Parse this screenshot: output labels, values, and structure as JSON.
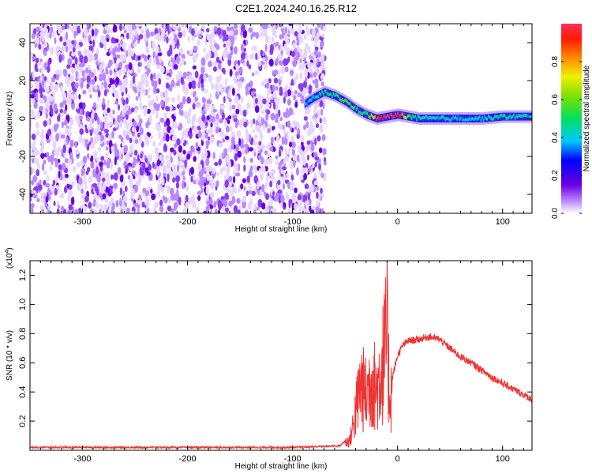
{
  "title": "C2E1.2024.240.16.25.R12",
  "colors": {
    "snr_line": "#ee3333",
    "frame": "#000000"
  },
  "chart_data": [
    {
      "type": "heatmap",
      "xlabel": "Height of straight line (km)",
      "ylabel": "Frequency (Hz)",
      "xlim": [
        -350,
        128
      ],
      "ylim": [
        -50,
        50
      ],
      "x_ticks": [
        -300,
        -200,
        -100,
        0,
        100
      ],
      "y_ticks": [
        -40,
        -20,
        0,
        20,
        40
      ],
      "colorbar": {
        "label": "Normalized spectral amplitude",
        "range": [
          0,
          1
        ],
        "ticks": [
          "0.0",
          "0.2",
          "0.4",
          "0.6",
          "0.8"
        ],
        "tick_values": [
          0.0,
          0.2,
          0.4,
          0.6,
          0.8
        ]
      },
      "noise_region_x": [
        -350,
        -75
      ],
      "signal_track": {
        "x": [
          -88,
          -80,
          -70,
          -60,
          -50,
          -40,
          -30,
          -20,
          -10,
          0,
          10,
          20,
          40,
          60,
          80,
          100,
          128
        ],
        "freq_hz": [
          8,
          11,
          14,
          12,
          9,
          5,
          2,
          0,
          1,
          2,
          1,
          0,
          0,
          0,
          0,
          1,
          1
        ],
        "amplitude": [
          0.3,
          0.35,
          0.45,
          0.45,
          0.5,
          0.45,
          0.4,
          0.9,
          0.95,
          0.95,
          0.5,
          0.4,
          0.35,
          0.35,
          0.35,
          0.4,
          0.35
        ]
      }
    },
    {
      "type": "line",
      "xlabel": "Height of straight line (km)",
      "ylabel": "SNR (10 * v/v)",
      "multiplier": "(x10",
      "multiplier_exp": "4",
      "multiplier_close": ")",
      "xlim": [
        -350,
        128
      ],
      "ylim": [
        0,
        1.3
      ],
      "x_ticks": [
        -300,
        -200,
        -100,
        0,
        100
      ],
      "y_ticks": [
        0.2,
        0.4,
        0.6,
        0.8,
        1.0,
        1.2
      ],
      "y_tick_labels": [
        "0.2",
        "0.4",
        "0.6",
        "0.8",
        "1.0",
        "1.2"
      ],
      "series": [
        {
          "x": [
            -350,
            -300,
            -200,
            -100,
            -55,
            -45,
            -40,
            -35,
            -30,
            -25,
            -20,
            -15,
            -12,
            -10,
            -8,
            -5,
            0,
            5,
            10,
            20,
            30,
            40,
            50,
            60,
            70,
            80,
            90,
            100,
            110,
            120,
            128
          ],
          "y": [
            0.02,
            0.02,
            0.02,
            0.02,
            0.03,
            0.1,
            0.35,
            0.6,
            0.5,
            0.65,
            0.55,
            0.75,
            0.9,
            1.05,
            0.55,
            0.5,
            0.65,
            0.72,
            0.75,
            0.76,
            0.78,
            0.76,
            0.7,
            0.64,
            0.6,
            0.55,
            0.5,
            0.46,
            0.42,
            0.38,
            0.35
          ]
        }
      ]
    }
  ],
  "axis_tick_labels": {
    "x": [
      "-300",
      "-200",
      "-100",
      "0",
      "100"
    ],
    "y_top": [
      "-40",
      "-20",
      "0",
      "20",
      "40"
    ]
  }
}
